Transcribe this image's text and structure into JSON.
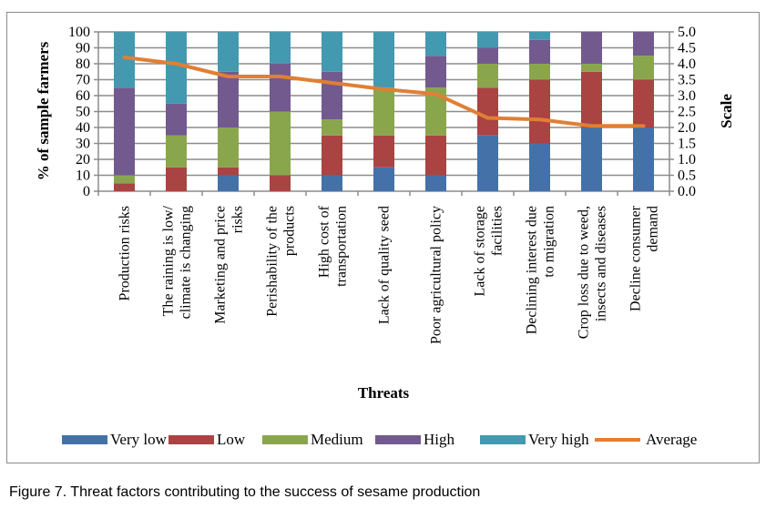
{
  "chart_data": {
    "type": "bar",
    "stacked": true,
    "title": "",
    "xlabel": "Threats",
    "ylabel": "% of sample farmers",
    "y2label": "Scale",
    "ylim": [
      0,
      100
    ],
    "y2lim": [
      0,
      5
    ],
    "yticks": [
      "0",
      "10",
      "20",
      "30",
      "40",
      "50",
      "60",
      "70",
      "80",
      "90",
      "100"
    ],
    "y2ticks": [
      "0.0",
      "0.5",
      "1.0",
      "1.5",
      "2.0",
      "2.5",
      "3.0",
      "3.5",
      "4.0",
      "4.5",
      "5.0"
    ],
    "grid": true,
    "legend_position": "bottom",
    "categories": [
      [
        "Production risks"
      ],
      [
        "The raining is low/",
        "climate is changing"
      ],
      [
        "Marketing and price",
        "risks"
      ],
      [
        "Perishability of the",
        "products"
      ],
      [
        "High cost of",
        "transportation"
      ],
      [
        "Lack of quality seed"
      ],
      [
        "Poor agricultural policy"
      ],
      [
        "Lack of storage",
        "facilities"
      ],
      [
        "Declining interest due",
        "to migration"
      ],
      [
        "Crop loss due to weed,",
        "insects and diseases"
      ],
      [
        "Decline consumer",
        "demand"
      ]
    ],
    "series": [
      {
        "name": "Very low",
        "color": "#4472a8",
        "values": [
          0,
          0,
          10,
          0,
          10,
          15,
          10,
          35,
          30,
          40,
          40
        ]
      },
      {
        "name": "Low",
        "color": "#a94442",
        "values": [
          5,
          15,
          5,
          10,
          25,
          20,
          25,
          30,
          40,
          35,
          30
        ]
      },
      {
        "name": "Medium",
        "color": "#8aa64c",
        "values": [
          5,
          20,
          25,
          40,
          10,
          30,
          30,
          15,
          10,
          5,
          15
        ]
      },
      {
        "name": "High",
        "color": "#725a8f",
        "values": [
          55,
          20,
          35,
          30,
          30,
          0,
          20,
          10,
          15,
          20,
          15
        ]
      },
      {
        "name": "Very high",
        "color": "#4399b0",
        "values": [
          35,
          45,
          25,
          20,
          25,
          35,
          15,
          10,
          5,
          0,
          0
        ]
      }
    ],
    "line": {
      "name": "Average",
      "color": "#e07f35",
      "axis": "secondary",
      "values": [
        4.2,
        4.0,
        3.6,
        3.6,
        3.4,
        3.2,
        3.05,
        2.3,
        2.25,
        2.05,
        2.05
      ]
    }
  },
  "caption": "Figure 7. Threat factors contributing to the success of sesame production"
}
